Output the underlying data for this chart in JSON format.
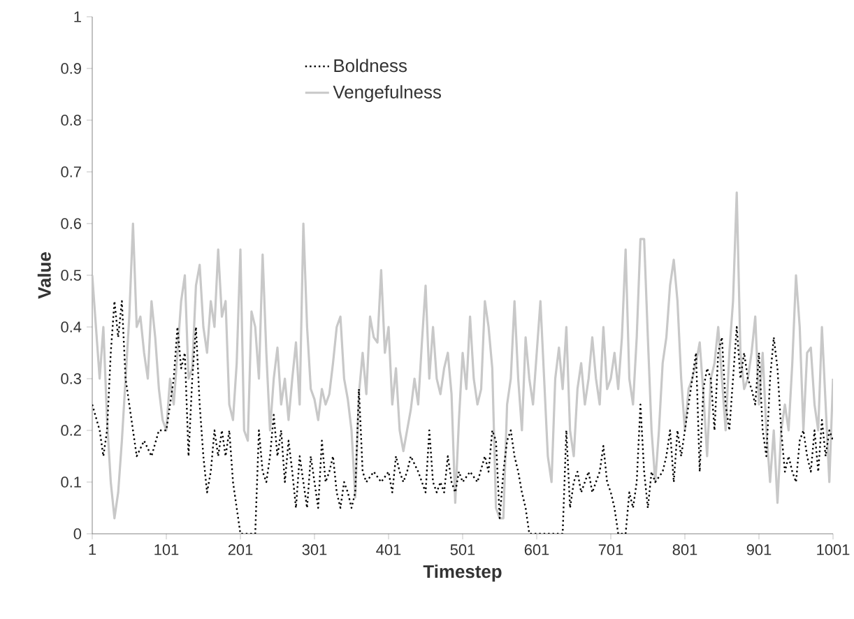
{
  "chart_data": {
    "type": "line",
    "xlabel": "Timestep",
    "ylabel": "Value",
    "xlim": [
      1,
      1001
    ],
    "xticks": [
      1,
      101,
      201,
      301,
      401,
      501,
      601,
      701,
      801,
      901,
      1001
    ],
    "ylim": [
      0,
      1
    ],
    "yticks": [
      0,
      0.1,
      0.2,
      0.3,
      0.4,
      0.5,
      0.6,
      0.7,
      0.8,
      0.9,
      1
    ],
    "grid": false,
    "legend": "top left",
    "marker": "none",
    "series": [
      {
        "name": "Boldness",
        "color": "#000000",
        "line_style": "dotted",
        "x": [
          1,
          11,
          16,
          21,
          26,
          31,
          36,
          41,
          46,
          51,
          56,
          61,
          71,
          81,
          91,
          101,
          106,
          111,
          116,
          121,
          126,
          131,
          136,
          141,
          146,
          151,
          156,
          161,
          166,
          171,
          176,
          181,
          186,
          191,
          196,
          201,
          211,
          221,
          226,
          231,
          236,
          241,
          246,
          251,
          256,
          261,
          266,
          271,
          276,
          281,
          286,
          291,
          296,
          301,
          306,
          311,
          316,
          321,
          326,
          331,
          336,
          341,
          346,
          351,
          356,
          361,
          366,
          371,
          381,
          391,
          401,
          406,
          411,
          416,
          421,
          426,
          431,
          441,
          451,
          456,
          461,
          466,
          471,
          476,
          481,
          486,
          491,
          496,
          501,
          511,
          521,
          531,
          536,
          541,
          546,
          551,
          556,
          561,
          566,
          571,
          576,
          581,
          586,
          591,
          601,
          621,
          636,
          641,
          646,
          651,
          656,
          661,
          666,
          671,
          676,
          681,
          686,
          691,
          696,
          701,
          706,
          711,
          721,
          726,
          731,
          736,
          741,
          746,
          751,
          756,
          761,
          771,
          776,
          781,
          786,
          791,
          796,
          801,
          806,
          811,
          816,
          821,
          826,
          831,
          836,
          841,
          846,
          851,
          856,
          861,
          866,
          871,
          876,
          881,
          886,
          891,
          896,
          901,
          906,
          911,
          916,
          921,
          926,
          931,
          936,
          941,
          946,
          951,
          956,
          961,
          966,
          971,
          976,
          981,
          986,
          991,
          996,
          1001
        ],
        "values": [
          0.25,
          0.2,
          0.15,
          0.2,
          0.35,
          0.45,
          0.38,
          0.45,
          0.3,
          0.25,
          0.2,
          0.15,
          0.18,
          0.15,
          0.2,
          0.2,
          0.25,
          0.3,
          0.4,
          0.32,
          0.35,
          0.15,
          0.3,
          0.4,
          0.25,
          0.15,
          0.08,
          0.12,
          0.2,
          0.15,
          0.2,
          0.15,
          0.2,
          0.1,
          0.05,
          0.0,
          0.0,
          0.0,
          0.2,
          0.12,
          0.1,
          0.15,
          0.23,
          0.15,
          0.2,
          0.1,
          0.18,
          0.12,
          0.05,
          0.15,
          0.1,
          0.05,
          0.15,
          0.1,
          0.05,
          0.18,
          0.1,
          0.12,
          0.15,
          0.08,
          0.05,
          0.1,
          0.08,
          0.05,
          0.08,
          0.28,
          0.12,
          0.1,
          0.12,
          0.1,
          0.12,
          0.08,
          0.15,
          0.12,
          0.1,
          0.12,
          0.15,
          0.12,
          0.08,
          0.2,
          0.1,
          0.08,
          0.1,
          0.08,
          0.15,
          0.1,
          0.08,
          0.12,
          0.1,
          0.12,
          0.1,
          0.15,
          0.12,
          0.2,
          0.18,
          0.03,
          0.12,
          0.18,
          0.2,
          0.15,
          0.12,
          0.08,
          0.05,
          0.0,
          0.0,
          0.0,
          0.0,
          0.2,
          0.05,
          0.1,
          0.12,
          0.08,
          0.1,
          0.12,
          0.08,
          0.1,
          0.12,
          0.17,
          0.1,
          0.08,
          0.05,
          0.0,
          0.0,
          0.08,
          0.05,
          0.1,
          0.25,
          0.12,
          0.05,
          0.12,
          0.1,
          0.12,
          0.15,
          0.2,
          0.1,
          0.2,
          0.15,
          0.2,
          0.25,
          0.3,
          0.35,
          0.12,
          0.28,
          0.32,
          0.3,
          0.2,
          0.35,
          0.38,
          0.25,
          0.2,
          0.3,
          0.4,
          0.3,
          0.35,
          0.3,
          0.28,
          0.25,
          0.35,
          0.2,
          0.15,
          0.3,
          0.38,
          0.32,
          0.2,
          0.12,
          0.15,
          0.12,
          0.1,
          0.18,
          0.2,
          0.15,
          0.12,
          0.2,
          0.12,
          0.22,
          0.15,
          0.2,
          0.18
        ]
      },
      {
        "name": "Vengefulness",
        "color": "#c8c8c8",
        "line_style": "solid",
        "x": [
          1,
          11,
          16,
          21,
          26,
          31,
          36,
          41,
          46,
          51,
          56,
          61,
          66,
          71,
          76,
          81,
          86,
          91,
          96,
          101,
          106,
          111,
          116,
          121,
          126,
          131,
          136,
          141,
          146,
          151,
          156,
          161,
          166,
          171,
          176,
          181,
          186,
          191,
          196,
          201,
          206,
          211,
          216,
          221,
          226,
          231,
          236,
          241,
          246,
          251,
          256,
          261,
          266,
          271,
          276,
          281,
          286,
          291,
          296,
          301,
          306,
          311,
          316,
          321,
          326,
          331,
          336,
          341,
          346,
          351,
          356,
          361,
          366,
          371,
          376,
          381,
          386,
          391,
          396,
          401,
          406,
          411,
          416,
          421,
          426,
          431,
          436,
          441,
          446,
          451,
          456,
          461,
          466,
          471,
          476,
          481,
          486,
          491,
          496,
          501,
          506,
          511,
          516,
          521,
          526,
          531,
          536,
          541,
          546,
          551,
          556,
          561,
          566,
          571,
          576,
          581,
          586,
          591,
          596,
          601,
          606,
          611,
          616,
          621,
          626,
          631,
          636,
          641,
          646,
          651,
          656,
          661,
          666,
          671,
          676,
          681,
          686,
          691,
          696,
          701,
          706,
          711,
          716,
          721,
          726,
          731,
          736,
          741,
          746,
          751,
          756,
          761,
          766,
          771,
          776,
          781,
          786,
          791,
          796,
          801,
          806,
          811,
          816,
          821,
          826,
          831,
          836,
          841,
          846,
          851,
          856,
          861,
          866,
          871,
          876,
          881,
          886,
          891,
          896,
          901,
          906,
          911,
          916,
          921,
          926,
          931,
          936,
          941,
          946,
          951,
          956,
          961,
          966,
          971,
          976,
          981,
          986,
          991,
          996,
          1001
        ],
        "values": [
          0.5,
          0.3,
          0.4,
          0.22,
          0.1,
          0.03,
          0.08,
          0.18,
          0.3,
          0.42,
          0.6,
          0.4,
          0.42,
          0.35,
          0.3,
          0.45,
          0.38,
          0.28,
          0.22,
          0.2,
          0.3,
          0.25,
          0.35,
          0.45,
          0.5,
          0.3,
          0.32,
          0.48,
          0.52,
          0.4,
          0.35,
          0.45,
          0.4,
          0.55,
          0.42,
          0.45,
          0.25,
          0.22,
          0.33,
          0.55,
          0.2,
          0.18,
          0.43,
          0.4,
          0.3,
          0.54,
          0.35,
          0.2,
          0.3,
          0.36,
          0.25,
          0.3,
          0.22,
          0.3,
          0.37,
          0.25,
          0.6,
          0.4,
          0.28,
          0.26,
          0.22,
          0.28,
          0.25,
          0.27,
          0.33,
          0.4,
          0.42,
          0.3,
          0.26,
          0.2,
          0.07,
          0.27,
          0.35,
          0.27,
          0.42,
          0.38,
          0.37,
          0.51,
          0.35,
          0.4,
          0.25,
          0.32,
          0.2,
          0.16,
          0.2,
          0.24,
          0.3,
          0.25,
          0.37,
          0.48,
          0.3,
          0.4,
          0.3,
          0.27,
          0.32,
          0.35,
          0.27,
          0.06,
          0.22,
          0.35,
          0.28,
          0.42,
          0.3,
          0.25,
          0.28,
          0.45,
          0.4,
          0.32,
          0.05,
          0.03,
          0.03,
          0.25,
          0.3,
          0.45,
          0.3,
          0.2,
          0.38,
          0.3,
          0.25,
          0.35,
          0.45,
          0.3,
          0.15,
          0.1,
          0.3,
          0.36,
          0.28,
          0.4,
          0.2,
          0.15,
          0.28,
          0.33,
          0.25,
          0.3,
          0.38,
          0.3,
          0.25,
          0.4,
          0.28,
          0.3,
          0.35,
          0.28,
          0.38,
          0.55,
          0.3,
          0.25,
          0.38,
          0.57,
          0.57,
          0.38,
          0.2,
          0.1,
          0.2,
          0.33,
          0.38,
          0.48,
          0.53,
          0.45,
          0.3,
          0.2,
          0.28,
          0.3,
          0.33,
          0.37,
          0.27,
          0.15,
          0.3,
          0.33,
          0.4,
          0.3,
          0.2,
          0.35,
          0.45,
          0.66,
          0.35,
          0.28,
          0.3,
          0.35,
          0.42,
          0.25,
          0.35,
          0.2,
          0.1,
          0.2,
          0.06,
          0.2,
          0.25,
          0.2,
          0.33,
          0.5,
          0.4,
          0.2,
          0.35,
          0.36,
          0.25,
          0.2,
          0.4,
          0.25,
          0.1,
          0.3
        ]
      }
    ]
  }
}
